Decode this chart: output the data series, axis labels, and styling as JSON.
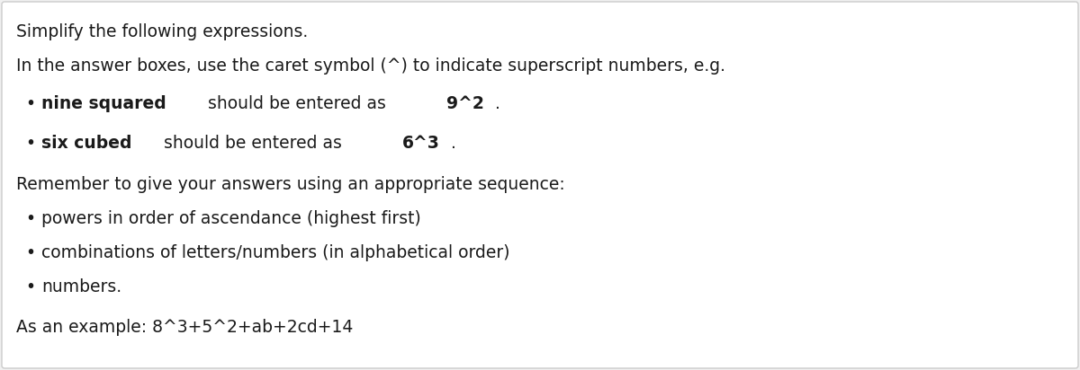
{
  "background_color": "#f0f0f0",
  "box_color": "#ffffff",
  "border_color": "#cccccc",
  "text_color": "#1a1a1a",
  "font_size": 13.5,
  "line1": "Simplify the following expressions.",
  "line2": "In the answer boxes, use the caret symbol (^) to indicate superscript numbers, e.g.",
  "bullet1_bold": "nine squared",
  "bullet1_rest": " should be entered as ",
  "bullet1_bold2": "9^2",
  "bullet1_end": ".",
  "bullet2_bold": "six cubed",
  "bullet2_rest": " should be entered as ",
  "bullet2_bold2": "6^3",
  "bullet2_end": ".",
  "line3": "Remember to give your answers using an appropriate sequence:",
  "bullet3": "powers in order of ascendance (highest first)",
  "bullet4": "combinations of letters/numbers (in alphabetical order)",
  "bullet5": "numbers.",
  "line4": "As an example: 8^3+5^2+ab+2cd+14",
  "fig_width": 12.0,
  "fig_height": 4.12,
  "dpi": 100
}
